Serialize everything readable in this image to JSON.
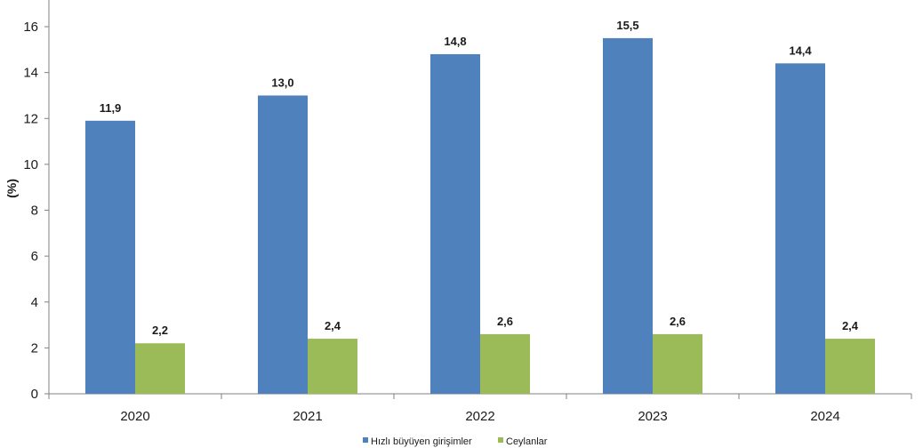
{
  "chart_data": {
    "type": "bar",
    "categories": [
      "2020",
      "2021",
      "2022",
      "2023",
      "2024"
    ],
    "series": [
      {
        "name": "Hızlı büyüyen girişimler",
        "color": "#4f81bd",
        "values": [
          11.9,
          13.0,
          14.8,
          15.5,
          14.4
        ],
        "labels": [
          "11,9",
          "13,0",
          "14,8",
          "15,5",
          "14,4"
        ]
      },
      {
        "name": "Ceylanlar",
        "color": "#9bbb59",
        "values": [
          2.2,
          2.4,
          2.6,
          2.6,
          2.4
        ],
        "labels": [
          "2,2",
          "2,4",
          "2,6",
          "2,6",
          "2,4"
        ]
      }
    ],
    "ylabel": "(%)",
    "xlabel": "",
    "ylim": [
      0,
      16
    ],
    "yticks": [
      0,
      2,
      4,
      6,
      8,
      10,
      12,
      14,
      16
    ],
    "grid": false,
    "legend": "bottom"
  }
}
